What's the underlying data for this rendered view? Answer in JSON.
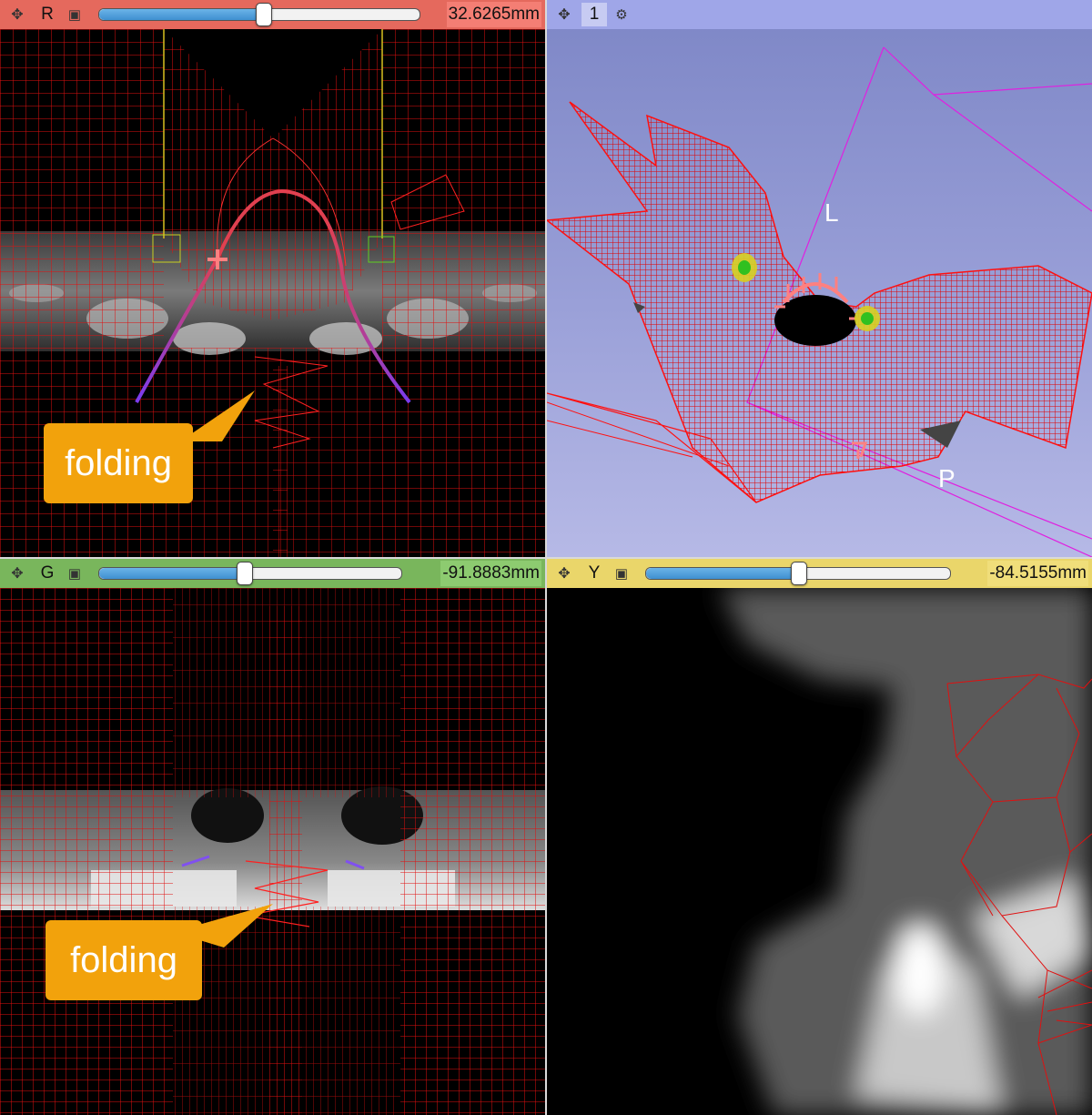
{
  "views": {
    "red": {
      "label": "R",
      "value": "32.6265mm",
      "slider_fraction": 0.51,
      "color": "#e5695d"
    },
    "threeD": {
      "label": "1",
      "color": "#9fa6e8"
    },
    "green": {
      "label": "G",
      "value": "-91.8883mm",
      "slider_fraction": 0.48,
      "color": "#79b65c"
    },
    "yellow": {
      "label": "Y",
      "value": "-84.5155mm",
      "slider_fraction": 0.5,
      "color": "#ead66a"
    }
  },
  "annotations": {
    "top_callout": "folding",
    "bottom_callout": "folding"
  },
  "orientation_markers": {
    "left": "L",
    "posterior": "P"
  },
  "icons": {
    "pin": "pin-icon",
    "link": "link-icon",
    "view_menu": "view-menu-icon"
  }
}
